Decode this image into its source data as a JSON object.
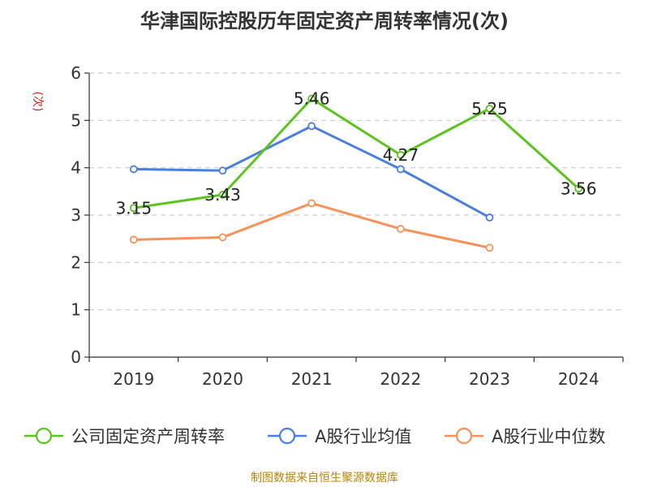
{
  "title": "华津国际控股历年固定资产周转率情况(次)",
  "source": "制图数据来自恒生聚源数据库",
  "chart_data": {
    "type": "line",
    "title": "华津国际控股历年固定资产周转率情况(次)",
    "ylabel": "(次)",
    "xlabel": "",
    "categories": [
      "2019",
      "2020",
      "2021",
      "2022",
      "2023",
      "2024"
    ],
    "ylim": [
      0,
      6
    ],
    "yticks": [
      0,
      1,
      2,
      3,
      4,
      5,
      6
    ],
    "grid": true,
    "legend_position": "bottom",
    "series": [
      {
        "name": "公司固定资产周转率",
        "color": "#5cc320",
        "values": [
          3.15,
          3.43,
          5.46,
          4.27,
          5.25,
          3.56
        ],
        "labels": [
          "3.15",
          "3.43",
          "5.46",
          "4.27",
          "5.25",
          "3.56"
        ]
      },
      {
        "name": "A股行业均值",
        "color": "#4a7fe0",
        "values": [
          3.97,
          3.94,
          4.88,
          3.97,
          2.95,
          null
        ]
      },
      {
        "name": "A股行业中位数",
        "color": "#f7935a",
        "values": [
          2.48,
          2.53,
          3.25,
          2.71,
          2.31,
          null
        ]
      }
    ]
  }
}
